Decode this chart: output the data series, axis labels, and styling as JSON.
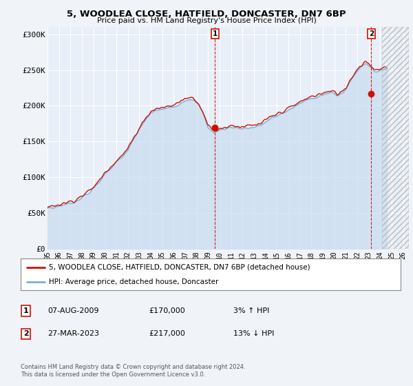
{
  "title1": "5, WOODLEA CLOSE, HATFIELD, DONCASTER, DN7 6BP",
  "title2": "Price paid vs. HM Land Registry's House Price Index (HPI)",
  "ylabel_ticks": [
    "£0",
    "£50K",
    "£100K",
    "£150K",
    "£200K",
    "£250K",
    "£300K"
  ],
  "ytick_values": [
    0,
    50000,
    100000,
    150000,
    200000,
    250000,
    300000
  ],
  "ylim": [
    0,
    310000
  ],
  "xlim_start": 1995.0,
  "xlim_end": 2026.5,
  "xtick_years": [
    1995,
    1996,
    1997,
    1998,
    1999,
    2000,
    2001,
    2002,
    2003,
    2004,
    2005,
    2006,
    2007,
    2008,
    2009,
    2010,
    2011,
    2012,
    2013,
    2014,
    2015,
    2016,
    2017,
    2018,
    2019,
    2020,
    2021,
    2022,
    2023,
    2024,
    2025,
    2026
  ],
  "bg_color": "#f0f4f8",
  "plot_bg": "#e8eff8",
  "grid_color": "#ffffff",
  "hpi_color": "#7daed4",
  "hpi_fill_color": "#c8dcf0",
  "price_color": "#cc1100",
  "marker1_date": 2009.6,
  "marker1_price": 170000,
  "marker2_date": 2023.23,
  "marker2_price": 217000,
  "legend_label1": "5, WOODLEA CLOSE, HATFIELD, DONCASTER, DN7 6BP (detached house)",
  "legend_label2": "HPI: Average price, detached house, Doncaster",
  "table_row1": [
    "1",
    "07-AUG-2009",
    "£170,000",
    "3% ↑ HPI"
  ],
  "table_row2": [
    "2",
    "27-MAR-2023",
    "£217,000",
    "13% ↓ HPI"
  ],
  "footnote": "Contains HM Land Registry data © Crown copyright and database right 2024.\nThis data is licensed under the Open Government Licence v3.0.",
  "hatch_start": 2024.17,
  "hatch_end": 2026.5
}
